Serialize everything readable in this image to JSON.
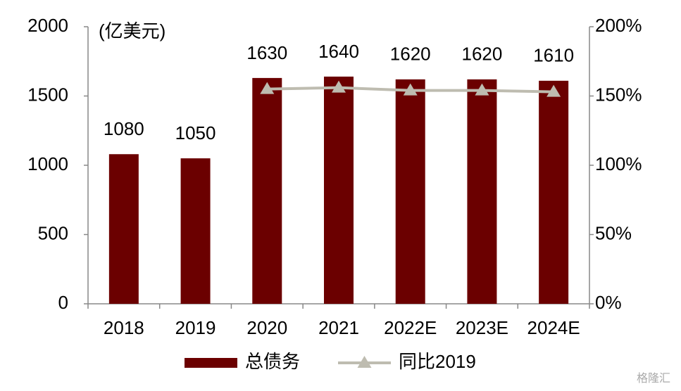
{
  "chart_data": {
    "type": "bar_line",
    "y_label": "(亿美元)",
    "categories": [
      "2018",
      "2019",
      "2020",
      "2021",
      "2022E",
      "2023E",
      "2024E"
    ],
    "series": [
      {
        "name": "总债务",
        "color": "#6b0000",
        "type": "bar",
        "values": [
          1080,
          1050,
          1630,
          1640,
          1620,
          1620,
          1610
        ]
      },
      {
        "name": "同比2019",
        "color": "#bebcb0",
        "type": "line",
        "axis": "y2",
        "values": [
          null,
          null,
          155,
          156,
          154,
          154,
          153
        ]
      }
    ],
    "ylim": [
      0,
      2000
    ],
    "yticks": [
      0,
      500,
      1000,
      1500,
      2000
    ],
    "y2lim": [
      0,
      200
    ],
    "y2ticks": [
      {
        "value": 0,
        "label": "0%"
      },
      {
        "value": 50,
        "label": "50%"
      },
      {
        "value": 100,
        "label": "100%"
      },
      {
        "value": 150,
        "label": "150%"
      },
      {
        "value": 200,
        "label": "200%"
      }
    ],
    "legend": "bottom",
    "watermark": "格隆汇"
  }
}
